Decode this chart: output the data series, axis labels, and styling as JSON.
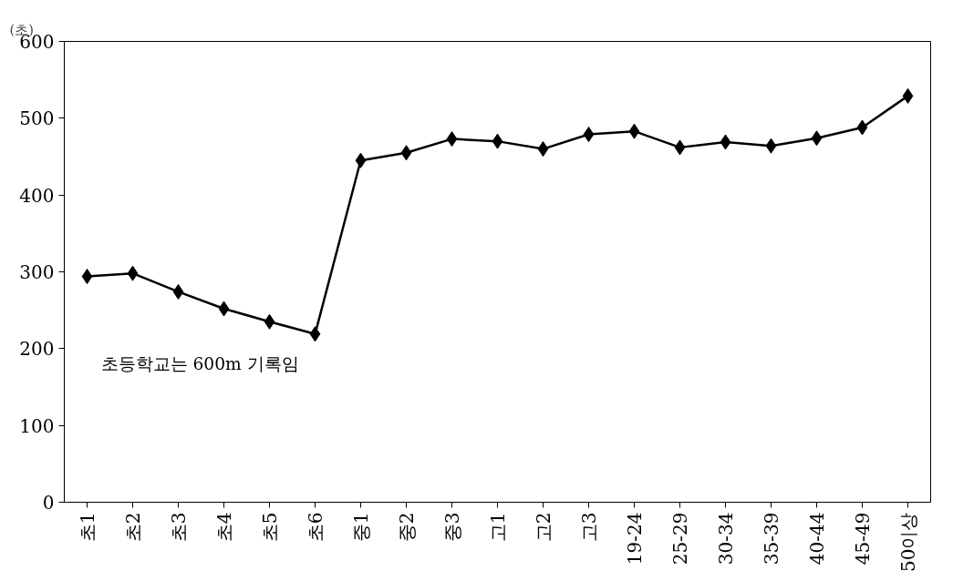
{
  "chart_data": {
    "type": "line",
    "ylabel": "(초)",
    "categories": [
      "초1",
      "초2",
      "초3",
      "초4",
      "초5",
      "초6",
      "중1",
      "중2",
      "중3",
      "고1",
      "고2",
      "고3",
      "19-24",
      "25-29",
      "30-34",
      "35-39",
      "40-44",
      "45-49",
      "50이상"
    ],
    "series": [
      {
        "color": "#000000",
        "values": [
          294,
          298,
          274,
          252,
          235,
          219,
          445,
          455,
          473,
          470,
          460,
          479,
          483,
          462,
          469,
          464,
          474,
          488,
          529
        ]
      }
    ],
    "ylim": [
      0,
      600
    ],
    "yticks": [
      0,
      100,
      200,
      300,
      400,
      500,
      600
    ],
    "grid": false,
    "marker": "diamond",
    "line_style": "solid",
    "annotations": [
      "초등학교는 600m 기록임"
    ]
  }
}
